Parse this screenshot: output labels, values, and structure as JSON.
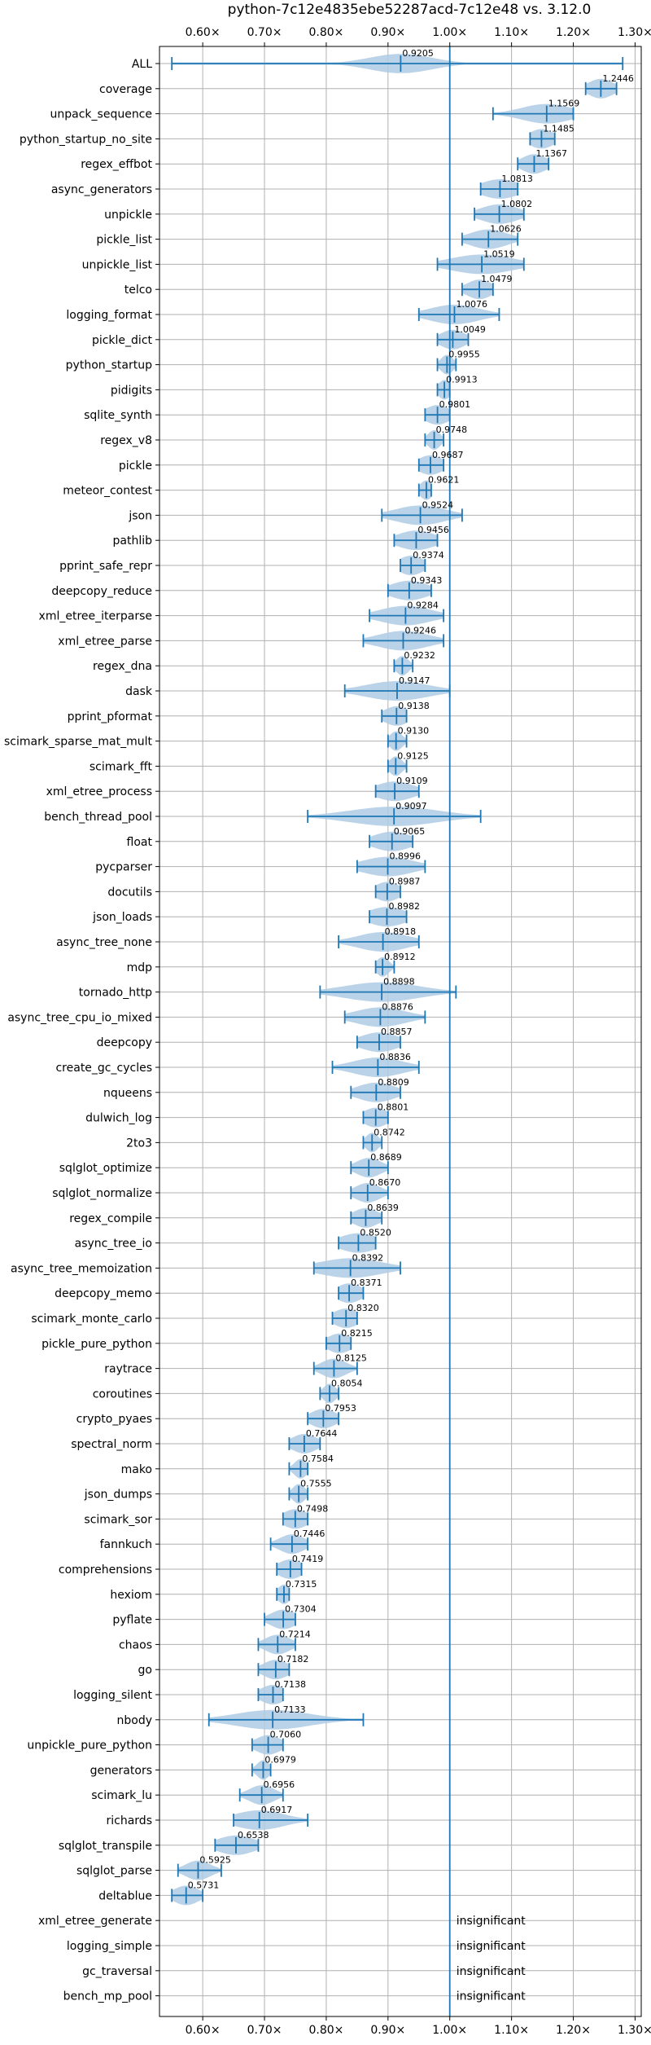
{
  "chart_data": {
    "type": "violin",
    "title": "python-7c12e4835ebe52287acd-7c12e48 vs. 3.12.0",
    "xlabel": "",
    "ylabel": "",
    "xlim": [
      0.53,
      1.31
    ],
    "x_ticks": [
      0.6,
      0.7,
      0.8,
      0.9,
      1.0,
      1.1,
      1.2,
      1.3
    ],
    "x_tick_labels": [
      "0.60×",
      "0.70×",
      "0.80×",
      "0.90×",
      "1.00×",
      "1.10×",
      "1.20×",
      "1.30×"
    ],
    "ticks_top_and_bottom": true,
    "grid": true,
    "reference_line": 1.0,
    "color": "#1f77b4",
    "fill_color": "#aecbe4",
    "rows": [
      {
        "name": "ALL",
        "value": 0.9205,
        "label": "0.9205",
        "min": 0.55,
        "max": 1.28,
        "spread": 0.05
      },
      {
        "name": "coverage",
        "value": 1.2446,
        "label": "1.2446",
        "min": 1.22,
        "max": 1.27,
        "spread": 0.02
      },
      {
        "name": "unpack_sequence",
        "value": 1.1569,
        "label": "1.1569",
        "min": 1.07,
        "max": 1.2,
        "spread": 0.04
      },
      {
        "name": "python_startup_no_site",
        "value": 1.1485,
        "label": "1.1485",
        "min": 1.13,
        "max": 1.17,
        "spread": 0.02
      },
      {
        "name": "regex_effbot",
        "value": 1.1367,
        "label": "1.1367",
        "min": 1.11,
        "max": 1.16,
        "spread": 0.02
      },
      {
        "name": "async_generators",
        "value": 1.0813,
        "label": "1.0813",
        "min": 1.05,
        "max": 1.11,
        "spread": 0.03
      },
      {
        "name": "unpickle",
        "value": 1.0802,
        "label": "1.0802",
        "min": 1.04,
        "max": 1.12,
        "spread": 0.03
      },
      {
        "name": "pickle_list",
        "value": 1.0626,
        "label": "1.0626",
        "min": 1.02,
        "max": 1.11,
        "spread": 0.03
      },
      {
        "name": "unpickle_list",
        "value": 1.0519,
        "label": "1.0519",
        "min": 0.98,
        "max": 1.12,
        "spread": 0.05
      },
      {
        "name": "telco",
        "value": 1.0479,
        "label": "1.0479",
        "min": 1.02,
        "max": 1.07,
        "spread": 0.02
      },
      {
        "name": "logging_format",
        "value": 1.0076,
        "label": "1.0076",
        "min": 0.95,
        "max": 1.08,
        "spread": 0.04
      },
      {
        "name": "pickle_dict",
        "value": 1.0049,
        "label": "1.0049",
        "min": 0.98,
        "max": 1.03,
        "spread": 0.02
      },
      {
        "name": "python_startup",
        "value": 0.9955,
        "label": "0.9955",
        "min": 0.98,
        "max": 1.01,
        "spread": 0.01
      },
      {
        "name": "pidigits",
        "value": 0.9913,
        "label": "0.9913",
        "min": 0.98,
        "max": 1.0,
        "spread": 0.01
      },
      {
        "name": "sqlite_synth",
        "value": 0.9801,
        "label": "0.9801",
        "min": 0.96,
        "max": 1.0,
        "spread": 0.02
      },
      {
        "name": "regex_v8",
        "value": 0.9748,
        "label": "0.9748",
        "min": 0.96,
        "max": 0.99,
        "spread": 0.01
      },
      {
        "name": "pickle",
        "value": 0.9687,
        "label": "0.9687",
        "min": 0.95,
        "max": 0.99,
        "spread": 0.02
      },
      {
        "name": "meteor_contest",
        "value": 0.9621,
        "label": "0.9621",
        "min": 0.95,
        "max": 0.97,
        "spread": 0.01
      },
      {
        "name": "json",
        "value": 0.9524,
        "label": "0.9524",
        "min": 0.89,
        "max": 1.02,
        "spread": 0.04
      },
      {
        "name": "pathlib",
        "value": 0.9456,
        "label": "0.9456",
        "min": 0.91,
        "max": 0.98,
        "spread": 0.03
      },
      {
        "name": "pprint_safe_repr",
        "value": 0.9374,
        "label": "0.9374",
        "min": 0.92,
        "max": 0.96,
        "spread": 0.02
      },
      {
        "name": "deepcopy_reduce",
        "value": 0.9343,
        "label": "0.9343",
        "min": 0.9,
        "max": 0.97,
        "spread": 0.03
      },
      {
        "name": "xml_etree_iterparse",
        "value": 0.9284,
        "label": "0.9284",
        "min": 0.87,
        "max": 0.99,
        "spread": 0.04
      },
      {
        "name": "xml_etree_parse",
        "value": 0.9246,
        "label": "0.9246",
        "min": 0.86,
        "max": 0.99,
        "spread": 0.04
      },
      {
        "name": "regex_dna",
        "value": 0.9232,
        "label": "0.9232",
        "min": 0.91,
        "max": 0.94,
        "spread": 0.01
      },
      {
        "name": "dask",
        "value": 0.9147,
        "label": "0.9147",
        "min": 0.83,
        "max": 1.0,
        "spread": 0.05
      },
      {
        "name": "pprint_pformat",
        "value": 0.9138,
        "label": "0.9138",
        "min": 0.89,
        "max": 0.93,
        "spread": 0.02
      },
      {
        "name": "scimark_sparse_mat_mult",
        "value": 0.913,
        "label": "0.9130",
        "min": 0.9,
        "max": 0.93,
        "spread": 0.01
      },
      {
        "name": "scimark_fft",
        "value": 0.9125,
        "label": "0.9125",
        "min": 0.9,
        "max": 0.93,
        "spread": 0.01
      },
      {
        "name": "xml_etree_process",
        "value": 0.9109,
        "label": "0.9109",
        "min": 0.88,
        "max": 0.95,
        "spread": 0.03
      },
      {
        "name": "bench_thread_pool",
        "value": 0.9097,
        "label": "0.9097",
        "min": 0.77,
        "max": 1.05,
        "spread": 0.07
      },
      {
        "name": "float",
        "value": 0.9065,
        "label": "0.9065",
        "min": 0.87,
        "max": 0.94,
        "spread": 0.03
      },
      {
        "name": "pycparser",
        "value": 0.8996,
        "label": "0.8996",
        "min": 0.85,
        "max": 0.96,
        "spread": 0.04
      },
      {
        "name": "docutils",
        "value": 0.8987,
        "label": "0.8987",
        "min": 0.88,
        "max": 0.92,
        "spread": 0.02
      },
      {
        "name": "json_loads",
        "value": 0.8982,
        "label": "0.8982",
        "min": 0.87,
        "max": 0.93,
        "spread": 0.03
      },
      {
        "name": "async_tree_none",
        "value": 0.8918,
        "label": "0.8918",
        "min": 0.82,
        "max": 0.95,
        "spread": 0.04
      },
      {
        "name": "mdp",
        "value": 0.8912,
        "label": "0.8912",
        "min": 0.88,
        "max": 0.91,
        "spread": 0.01
      },
      {
        "name": "tornado_http",
        "value": 0.8898,
        "label": "0.8898",
        "min": 0.79,
        "max": 1.01,
        "spread": 0.06
      },
      {
        "name": "async_tree_cpu_io_mixed",
        "value": 0.8876,
        "label": "0.8876",
        "min": 0.83,
        "max": 0.96,
        "spread": 0.04
      },
      {
        "name": "deepcopy",
        "value": 0.8857,
        "label": "0.8857",
        "min": 0.85,
        "max": 0.92,
        "spread": 0.03
      },
      {
        "name": "create_gc_cycles",
        "value": 0.8836,
        "label": "0.8836",
        "min": 0.81,
        "max": 0.95,
        "spread": 0.04
      },
      {
        "name": "nqueens",
        "value": 0.8809,
        "label": "0.8809",
        "min": 0.84,
        "max": 0.92,
        "spread": 0.03
      },
      {
        "name": "dulwich_log",
        "value": 0.8801,
        "label": "0.8801",
        "min": 0.86,
        "max": 0.9,
        "spread": 0.02
      },
      {
        "name": "2to3",
        "value": 0.8742,
        "label": "0.8742",
        "min": 0.86,
        "max": 0.89,
        "spread": 0.01
      },
      {
        "name": "sqlglot_optimize",
        "value": 0.8689,
        "label": "0.8689",
        "min": 0.84,
        "max": 0.9,
        "spread": 0.02
      },
      {
        "name": "sqlglot_normalize",
        "value": 0.867,
        "label": "0.8670",
        "min": 0.84,
        "max": 0.9,
        "spread": 0.02
      },
      {
        "name": "regex_compile",
        "value": 0.8639,
        "label": "0.8639",
        "min": 0.84,
        "max": 0.89,
        "spread": 0.02
      },
      {
        "name": "async_tree_io",
        "value": 0.852,
        "label": "0.8520",
        "min": 0.82,
        "max": 0.88,
        "spread": 0.03
      },
      {
        "name": "async_tree_memoization",
        "value": 0.8392,
        "label": "0.8392",
        "min": 0.78,
        "max": 0.92,
        "spread": 0.05
      },
      {
        "name": "deepcopy_memo",
        "value": 0.8371,
        "label": "0.8371",
        "min": 0.82,
        "max": 0.86,
        "spread": 0.02
      },
      {
        "name": "scimark_monte_carlo",
        "value": 0.832,
        "label": "0.8320",
        "min": 0.81,
        "max": 0.85,
        "spread": 0.02
      },
      {
        "name": "pickle_pure_python",
        "value": 0.8215,
        "label": "0.8215",
        "min": 0.8,
        "max": 0.84,
        "spread": 0.02
      },
      {
        "name": "raytrace",
        "value": 0.8125,
        "label": "0.8125",
        "min": 0.78,
        "max": 0.85,
        "spread": 0.02
      },
      {
        "name": "coroutines",
        "value": 0.8054,
        "label": "0.8054",
        "min": 0.79,
        "max": 0.82,
        "spread": 0.01
      },
      {
        "name": "crypto_pyaes",
        "value": 0.7953,
        "label": "0.7953",
        "min": 0.77,
        "max": 0.82,
        "spread": 0.02
      },
      {
        "name": "spectral_norm",
        "value": 0.7644,
        "label": "0.7644",
        "min": 0.74,
        "max": 0.79,
        "spread": 0.02
      },
      {
        "name": "mako",
        "value": 0.7584,
        "label": "0.7584",
        "min": 0.74,
        "max": 0.77,
        "spread": 0.01
      },
      {
        "name": "json_dumps",
        "value": 0.7555,
        "label": "0.7555",
        "min": 0.74,
        "max": 0.77,
        "spread": 0.01
      },
      {
        "name": "scimark_sor",
        "value": 0.7498,
        "label": "0.7498",
        "min": 0.73,
        "max": 0.77,
        "spread": 0.02
      },
      {
        "name": "fannkuch",
        "value": 0.7446,
        "label": "0.7446",
        "min": 0.71,
        "max": 0.77,
        "spread": 0.02
      },
      {
        "name": "comprehensions",
        "value": 0.7419,
        "label": "0.7419",
        "min": 0.72,
        "max": 0.76,
        "spread": 0.02
      },
      {
        "name": "hexiom",
        "value": 0.7315,
        "label": "0.7315",
        "min": 0.72,
        "max": 0.74,
        "spread": 0.01
      },
      {
        "name": "pyflate",
        "value": 0.7304,
        "label": "0.7304",
        "min": 0.7,
        "max": 0.75,
        "spread": 0.02
      },
      {
        "name": "chaos",
        "value": 0.7214,
        "label": "0.7214",
        "min": 0.69,
        "max": 0.75,
        "spread": 0.02
      },
      {
        "name": "go",
        "value": 0.7182,
        "label": "0.7182",
        "min": 0.69,
        "max": 0.74,
        "spread": 0.02
      },
      {
        "name": "logging_silent",
        "value": 0.7138,
        "label": "0.7138",
        "min": 0.69,
        "max": 0.73,
        "spread": 0.02
      },
      {
        "name": "nbody",
        "value": 0.7133,
        "label": "0.7133",
        "min": 0.61,
        "max": 0.86,
        "spread": 0.06
      },
      {
        "name": "unpickle_pure_python",
        "value": 0.706,
        "label": "0.7060",
        "min": 0.68,
        "max": 0.73,
        "spread": 0.02
      },
      {
        "name": "generators",
        "value": 0.6979,
        "label": "0.6979",
        "min": 0.68,
        "max": 0.71,
        "spread": 0.01
      },
      {
        "name": "scimark_lu",
        "value": 0.6956,
        "label": "0.6956",
        "min": 0.66,
        "max": 0.73,
        "spread": 0.02
      },
      {
        "name": "richards",
        "value": 0.6917,
        "label": "0.6917",
        "min": 0.65,
        "max": 0.77,
        "spread": 0.04
      },
      {
        "name": "sqlglot_transpile",
        "value": 0.6538,
        "label": "0.6538",
        "min": 0.62,
        "max": 0.69,
        "spread": 0.03
      },
      {
        "name": "sqlglot_parse",
        "value": 0.5925,
        "label": "0.5925",
        "min": 0.56,
        "max": 0.63,
        "spread": 0.02
      },
      {
        "name": "deltablue",
        "value": 0.5731,
        "label": "0.5731",
        "min": 0.55,
        "max": 0.6,
        "spread": 0.02
      },
      {
        "name": "xml_etree_generate",
        "value": null,
        "label": "insignificant"
      },
      {
        "name": "logging_simple",
        "value": null,
        "label": "insignificant"
      },
      {
        "name": "gc_traversal",
        "value": null,
        "label": "insignificant"
      },
      {
        "name": "bench_mp_pool",
        "value": null,
        "label": "insignificant"
      }
    ]
  }
}
